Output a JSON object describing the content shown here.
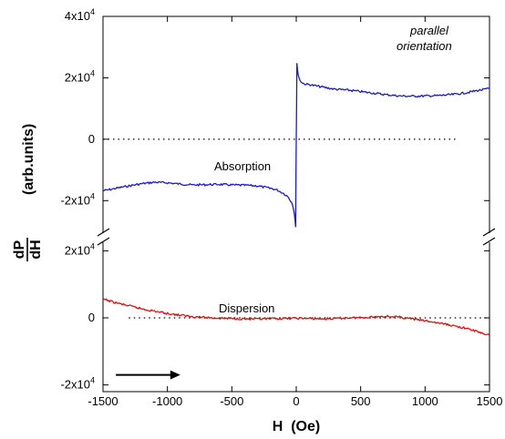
{
  "chart_data": {
    "type": "line",
    "xlabel": "H  (Oe)",
    "ylabel_fraction": {
      "numerator": "dP",
      "denominator": "dH"
    },
    "ylabel_units": "(arb.units)",
    "annotation": {
      "line1": "parallel",
      "line2": "orientation"
    },
    "x_ticks": [
      "-1500",
      "-1000",
      "-500",
      "0",
      "500",
      "1000",
      "1500"
    ],
    "xlim": [
      -1500,
      1500
    ],
    "panels": [
      {
        "name": "absorption",
        "label": "Absorption",
        "color": "#1a1acc",
        "ylim": [
          -30000,
          40000
        ],
        "y_ticks": [
          {
            "value": 40000,
            "mantissa": "4x10",
            "exp": "4"
          },
          {
            "value": 20000,
            "mantissa": "2x10",
            "exp": "4"
          },
          {
            "value": 0,
            "mantissa": "0",
            "exp": ""
          },
          {
            "value": -20000,
            "mantissa": "-2x10",
            "exp": "4"
          }
        ],
        "zero_line": {
          "from": -1500,
          "to": 1250
        },
        "series": [
          {
            "x": [
              -1500,
              -1400,
              -1300,
              -1200,
              -1100,
              -1000,
              -900,
              -800,
              -700,
              -600,
              -500,
              -400,
              -300,
              -200,
              -150,
              -100,
              -60,
              -30,
              -15,
              -5,
              0,
              5,
              15,
              30,
              60,
              100,
              200,
              300,
              400,
              500,
              600,
              700,
              800,
              900,
              1000,
              1100,
              1200,
              1300,
              1400,
              1500
            ],
            "y": [
              -16800,
              -16000,
              -15200,
              -14500,
              -14000,
              -14200,
              -14600,
              -14900,
              -14800,
              -14700,
              -14900,
              -15000,
              -15200,
              -16000,
              -16500,
              -17600,
              -18900,
              -21000,
              -24000,
              -28600,
              0,
              24500,
              21000,
              19000,
              18000,
              17800,
              17000,
              16300,
              16000,
              15500,
              15000,
              14500,
              14100,
              14000,
              14100,
              14200,
              14500,
              15000,
              15800,
              16500
            ]
          }
        ]
      },
      {
        "name": "dispersion",
        "label": "Dispersion",
        "color": "#dd1111",
        "ylim": [
          -22000,
          22000
        ],
        "y_ticks": [
          {
            "value": 20000,
            "mantissa": "2x10",
            "exp": "4"
          },
          {
            "value": 0,
            "mantissa": "0",
            "exp": ""
          },
          {
            "value": -20000,
            "mantissa": "-2x10",
            "exp": "4"
          }
        ],
        "zero_line": {
          "from": -1300,
          "to": 1500
        },
        "series": [
          {
            "x": [
              -1500,
              -1400,
              -1300,
              -1200,
              -1100,
              -1000,
              -900,
              -800,
              -700,
              -600,
              -500,
              -400,
              -300,
              -200,
              -100,
              0,
              100,
              200,
              300,
              400,
              500,
              600,
              700,
              800,
              900,
              1000,
              1100,
              1200,
              1300,
              1400,
              1500
            ],
            "y": [
              5600,
              4500,
              3600,
              2700,
              2000,
              1300,
              800,
              400,
              100,
              -100,
              -200,
              -300,
              -400,
              -300,
              -200,
              -100,
              -200,
              -300,
              -200,
              0,
              100,
              300,
              500,
              200,
              -300,
              -900,
              -1500,
              -2200,
              -3000,
              -4000,
              -5300
            ]
          }
        ]
      }
    ],
    "arrow": {
      "x_from": -1400,
      "x_to": -900,
      "y": -17000,
      "panel": "dispersion"
    }
  }
}
